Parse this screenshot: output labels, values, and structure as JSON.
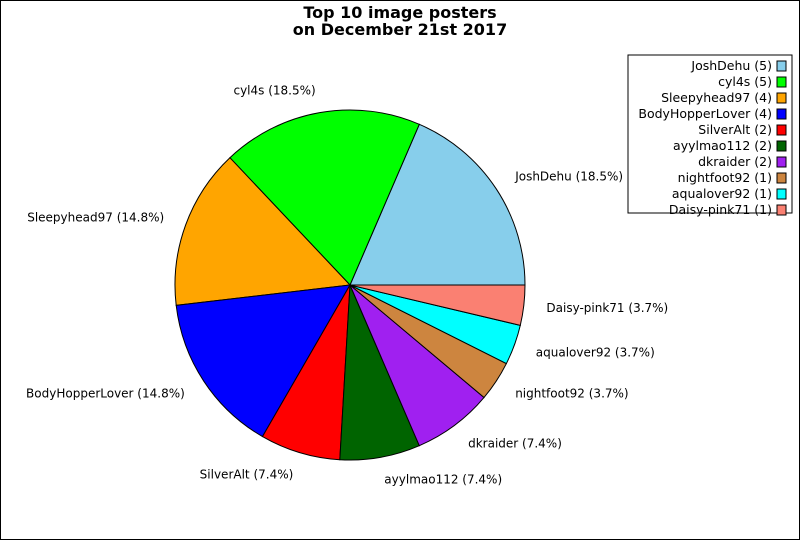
{
  "chart_data": {
    "type": "pie",
    "title": [
      "Top 10 image posters",
      "on December 21st 2017"
    ],
    "slices": [
      {
        "label": "JoshDehu",
        "value": 5,
        "pct": "18.5%",
        "color": "#87ceeb"
      },
      {
        "label": "cyl4s",
        "value": 5,
        "pct": "18.5%",
        "color": "#00ff00"
      },
      {
        "label": "Sleepyhead97",
        "value": 4,
        "pct": "14.8%",
        "color": "#ffa500"
      },
      {
        "label": "BodyHopperLover",
        "value": 4,
        "pct": "14.8%",
        "color": "#0000ff"
      },
      {
        "label": "SilverAlt",
        "value": 2,
        "pct": "7.4%",
        "color": "#ff0000"
      },
      {
        "label": "ayylmao112",
        "value": 2,
        "pct": "7.4%",
        "color": "#006400"
      },
      {
        "label": "dkraider",
        "value": 2,
        "pct": "7.4%",
        "color": "#a020f0"
      },
      {
        "label": "nightfoot92",
        "value": 1,
        "pct": "3.7%",
        "color": "#cd853f"
      },
      {
        "label": "aqualover92",
        "value": 1,
        "pct": "3.7%",
        "color": "#00ffff"
      },
      {
        "label": "Daisy-pink71",
        "value": 1,
        "pct": "3.7%",
        "color": "#fa8072"
      }
    ],
    "legend_placement": "top-right"
  }
}
